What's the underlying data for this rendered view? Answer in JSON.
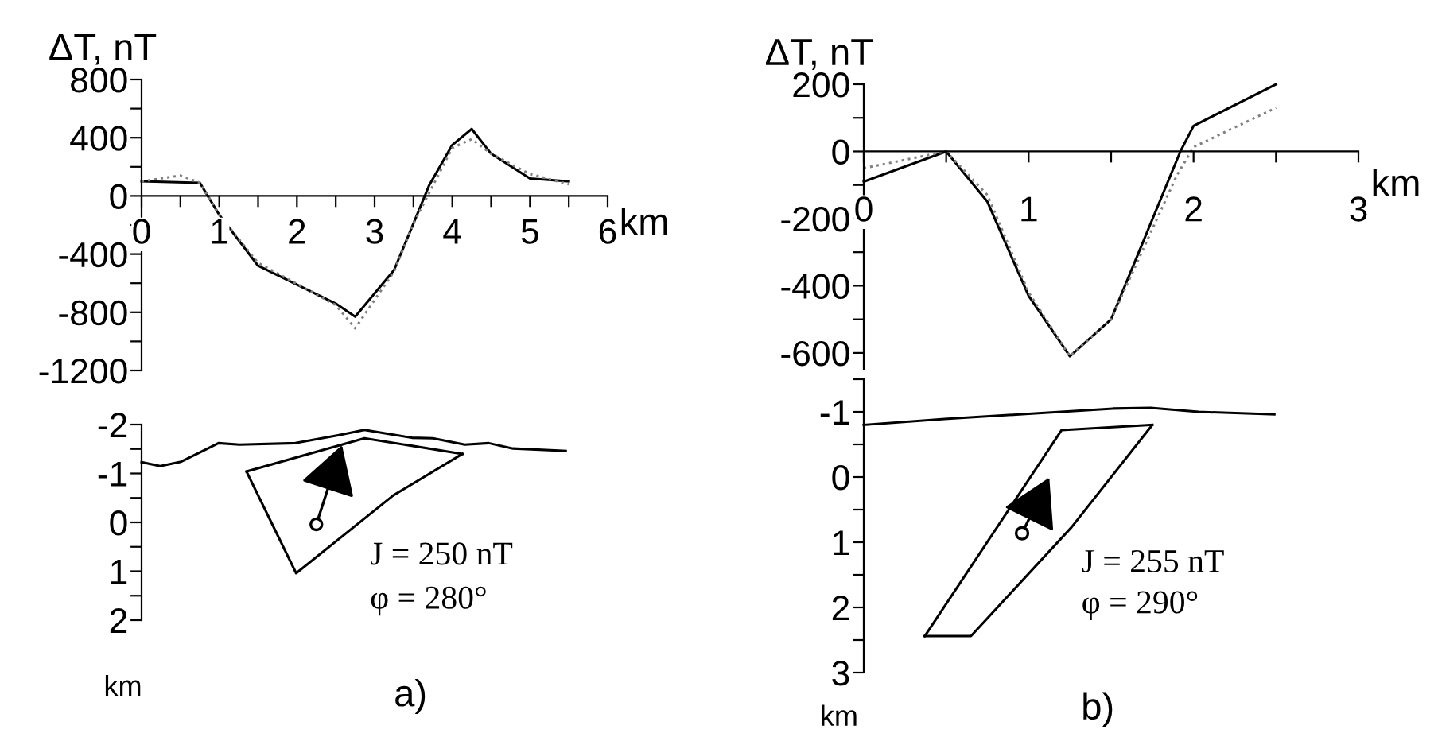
{
  "chart_data": [
    {
      "type": "line",
      "ylabel": "ΔT, nT",
      "xlabel": "km",
      "xlim": [
        0,
        6
      ],
      "ylim": [
        -1200,
        800
      ],
      "xticks": [
        0,
        {
          "value": 0.5,
          "label": null
        },
        1,
        {
          "value": 1.5,
          "label": null
        },
        2,
        {
          "value": 2.5,
          "label": null
        },
        3,
        {
          "value": 3.5,
          "label": null
        },
        4,
        {
          "value": 4.5,
          "label": null
        },
        5,
        {
          "value": 5.5,
          "label": null
        },
        6
      ],
      "yticks": [
        800,
        {
          "value": 600,
          "label": null
        },
        400,
        {
          "value": 200,
          "label": null
        },
        0,
        {
          "value": -200,
          "label": null
        },
        -400,
        {
          "value": -600,
          "label": null
        },
        -800,
        {
          "value": -1000,
          "label": null
        },
        -1200
      ],
      "grid": false,
      "legend": false,
      "series": [
        {
          "color": "#000000",
          "line_style": "solid",
          "x": [
            0,
            0.75,
            1.0,
            1.5,
            2.5,
            2.75,
            3.25,
            3.5,
            3.7,
            4.0,
            4.25,
            4.5,
            5.0,
            5.5
          ],
          "values": [
            100,
            90,
            -130,
            -480,
            -740,
            -830,
            -510,
            -190,
            70,
            350,
            460,
            290,
            120,
            100
          ]
        },
        {
          "color": "#808080",
          "line_style": "dotted",
          "x": [
            0,
            0.5,
            0.75,
            1.0,
            1.5,
            2.5,
            2.75,
            3.25,
            3.5,
            4.0,
            4.25,
            4.5,
            5.0,
            5.5
          ],
          "values": [
            100,
            140,
            90,
            -130,
            -460,
            -750,
            -910,
            -520,
            -190,
            330,
            390,
            290,
            150,
            80
          ]
        }
      ]
    },
    {
      "type": "line",
      "ylabel": "ΔT, nT",
      "xlabel": "km",
      "xlim": [
        0,
        3
      ],
      "ylim": [
        -650,
        200
      ],
      "xticks": [
        0,
        {
          "value": 0.5,
          "label": null
        },
        1,
        {
          "value": 1.5,
          "label": null
        },
        2,
        {
          "value": 2.5,
          "label": null
        },
        3
      ],
      "yticks": [
        200,
        {
          "value": 100,
          "label": null
        },
        0,
        {
          "value": -100,
          "label": null
        },
        -200,
        {
          "value": -300,
          "label": null
        },
        -400,
        {
          "value": -500,
          "label": null
        },
        -600
      ],
      "grid": false,
      "legend": false,
      "series": [
        {
          "color": "#000000",
          "line_style": "solid",
          "x": [
            0,
            0.5,
            0.75,
            1.0,
            1.25,
            1.5,
            1.92,
            2.0,
            2.5
          ],
          "values": [
            -90,
            0,
            -150,
            -430,
            -610,
            -500,
            0,
            76,
            200
          ]
        },
        {
          "color": "#808080",
          "line_style": "dotted",
          "x": [
            0,
            0.5,
            0.75,
            1.0,
            1.25,
            1.5,
            1.9,
            2.0,
            2.5
          ],
          "values": [
            -50,
            0,
            -130,
            -420,
            -610,
            -500,
            -70,
            13,
            130
          ]
        }
      ]
    },
    {
      "type": "line",
      "ylabel": "km",
      "tick_labels": "y",
      "xlim": [
        0,
        6
      ],
      "ylim": [
        2,
        -2
      ],
      "yticks": [
        -2,
        {
          "value": -1.5,
          "label": null
        },
        -1,
        {
          "value": -0.5,
          "label": null
        },
        0,
        {
          "value": 0.5,
          "label": null
        },
        1,
        {
          "value": 1.5,
          "label": null
        },
        2
      ],
      "grid": false,
      "legend": false,
      "annotations": [
        "J = 250 nT",
        "φ = 280°",
        "a)"
      ],
      "series": [
        {
          "color": "#000000",
          "line_style": "solid",
          "x": [
            0,
            0.24,
            0.51,
            0.99,
            1.26,
            1.98,
            2.53,
            2.87,
            3.21,
            3.48,
            3.75,
            4.16,
            4.47,
            4.78,
            5.46
          ],
          "values": [
            -1.23,
            -1.15,
            -1.24,
            -1.62,
            -1.59,
            -1.62,
            -1.78,
            -1.89,
            -1.8,
            -1.73,
            -1.72,
            -1.59,
            -1.62,
            -1.51,
            -1.46
          ]
        },
        {
          "color": "#000000",
          "line_style": "solid",
          "x": [
            1.35,
            2.87,
            4.13
          ],
          "values": [
            -1.04,
            -1.72,
            -1.4
          ]
        },
        {
          "color": "#000000",
          "line_style": "solid",
          "x": [
            1.35,
            1.99,
            3.24,
            4.13
          ],
          "values": [
            -1.04,
            1.04,
            -0.55,
            -1.4
          ]
        }
      ]
    },
    {
      "type": "line",
      "ylabel": "km",
      "tick_labels": "y",
      "xlim": [
        0,
        3
      ],
      "ylim": [
        3,
        -1.5
      ],
      "yticks": [
        {
          "value": -1.5,
          "label": null
        },
        -1,
        {
          "value": -0.5,
          "label": null
        },
        0,
        {
          "value": 0.5,
          "label": null
        },
        1,
        {
          "value": 1.5,
          "label": null
        },
        2,
        {
          "value": 2.5,
          "label": null
        },
        3
      ],
      "grid": false,
      "legend": false,
      "annotations": [
        "J = 255 nT",
        "φ = 290°",
        "b)"
      ],
      "series": [
        {
          "color": "#000000",
          "line_style": "solid",
          "x": [
            0,
            0.49,
            1.0,
            1.51,
            1.74,
            2.03,
            2.49
          ],
          "values": [
            -0.8,
            -0.89,
            -0.97,
            -1.05,
            -1.06,
            -1.0,
            -0.96
          ]
        },
        {
          "color": "#000000",
          "line_style": "solid",
          "x": [
            0.37,
            1.2,
            1.75
          ],
          "values": [
            2.44,
            -0.72,
            -0.8
          ]
        },
        {
          "color": "#000000",
          "line_style": "solid",
          "x": [
            0.37,
            0.65,
            1.26,
            1.75
          ],
          "values": [
            2.44,
            2.44,
            0.77,
            -0.8
          ]
        }
      ]
    }
  ]
}
